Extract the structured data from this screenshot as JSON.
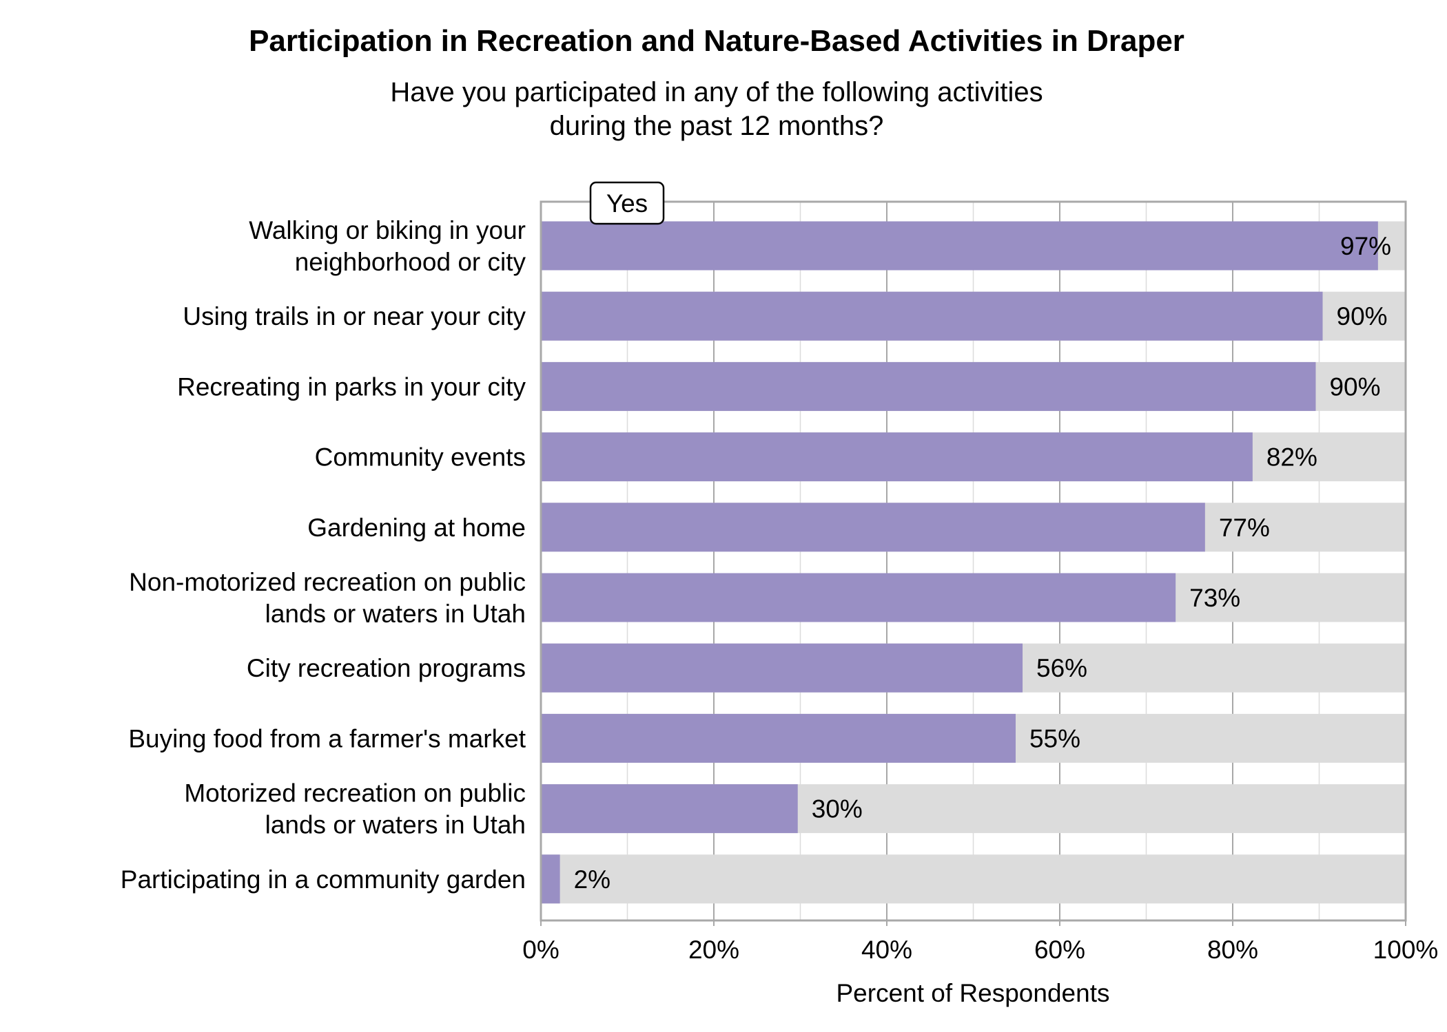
{
  "chart_data": {
    "type": "bar",
    "orientation": "horizontal",
    "stacked_background": true,
    "title": "Participation in Recreation and Nature-Based Activities in Draper",
    "subtitle": [
      "Have you participated in any of the following activities",
      "during the past 12 months?"
    ],
    "xlabel": "Percent of Respondents",
    "ylabel": "",
    "xlim": [
      0,
      100
    ],
    "x_ticks": [
      0,
      20,
      40,
      60,
      80,
      100
    ],
    "x_tick_labels": [
      "0%",
      "20%",
      "40%",
      "60%",
      "80%",
      "100%"
    ],
    "grid": true,
    "legend": {
      "entries": [
        "Yes"
      ],
      "placement": "top-left"
    },
    "categories": [
      "Walking or biking in your\nneighborhood or city",
      "Using trails in or near your city",
      "Recreating in parks in your city",
      "Community events",
      "Gardening at home",
      "Non-motorized recreation on public\nlands or waters in Utah",
      "City recreation programs",
      "Buying food from a farmer's market",
      "Motorized recreation on public\nlands or waters in Utah",
      "Participating in a community garden"
    ],
    "series": [
      {
        "name": "Yes",
        "values": [
          96.8,
          90.4,
          89.6,
          82.3,
          76.8,
          73.4,
          55.7,
          54.9,
          29.7,
          2.2
        ]
      }
    ],
    "data_labels": [
      "97%",
      "90%",
      "90%",
      "82%",
      "77%",
      "73%",
      "56%",
      "55%",
      "30%",
      "2%"
    ],
    "colors": {
      "yes": "#998fc4",
      "remainder": "#dcdcdc",
      "frame": "#a8a8a8",
      "major_grid": "#a8a8a8",
      "minor_grid": "#dcdcdc"
    }
  }
}
